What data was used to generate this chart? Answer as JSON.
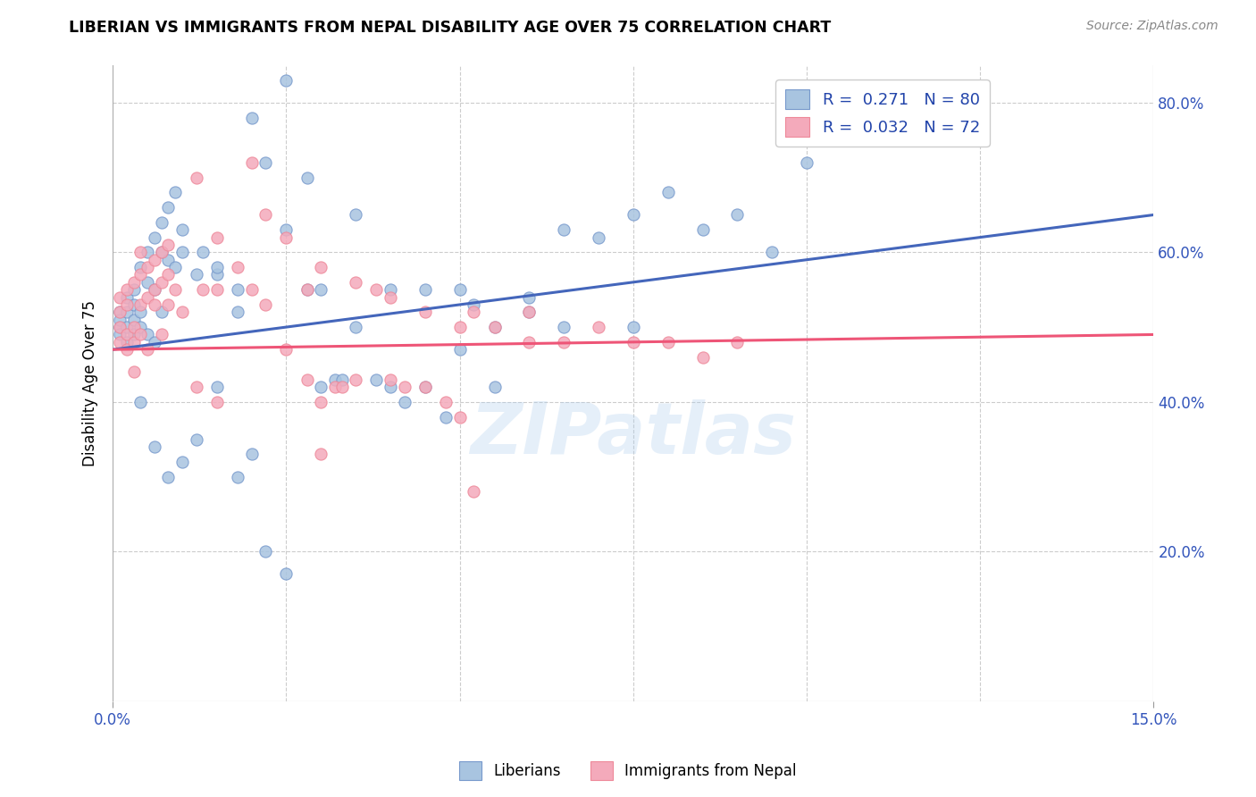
{
  "title": "LIBERIAN VS IMMIGRANTS FROM NEPAL DISABILITY AGE OVER 75 CORRELATION CHART",
  "source": "Source: ZipAtlas.com",
  "ylabel_left": "Disability Age Over 75",
  "watermark": "ZIPatlas",
  "legend": {
    "blue_R": "0.271",
    "blue_N": "80",
    "pink_R": "0.032",
    "pink_N": "72"
  },
  "blue_color": "#A8C4E0",
  "pink_color": "#F4AABB",
  "blue_edge_color": "#7799CC",
  "pink_edge_color": "#EE8899",
  "blue_line_color": "#4466BB",
  "pink_line_color": "#EE5577",
  "xlim": [
    0.0,
    0.15
  ],
  "ylim": [
    0.0,
    0.85
  ],
  "blue_line": [
    [
      0.0,
      0.47
    ],
    [
      0.15,
      0.65
    ]
  ],
  "pink_line": [
    [
      0.0,
      0.47
    ],
    [
      0.15,
      0.49
    ]
  ],
  "blue_scatter": [
    [
      0.001,
      0.5
    ],
    [
      0.001,
      0.52
    ],
    [
      0.001,
      0.51
    ],
    [
      0.001,
      0.49
    ],
    [
      0.002,
      0.54
    ],
    [
      0.002,
      0.5
    ],
    [
      0.002,
      0.52
    ],
    [
      0.002,
      0.48
    ],
    [
      0.003,
      0.55
    ],
    [
      0.003,
      0.51
    ],
    [
      0.003,
      0.49
    ],
    [
      0.003,
      0.53
    ],
    [
      0.004,
      0.58
    ],
    [
      0.004,
      0.52
    ],
    [
      0.004,
      0.5
    ],
    [
      0.005,
      0.6
    ],
    [
      0.005,
      0.56
    ],
    [
      0.005,
      0.49
    ],
    [
      0.006,
      0.62
    ],
    [
      0.006,
      0.55
    ],
    [
      0.006,
      0.48
    ],
    [
      0.007,
      0.64
    ],
    [
      0.007,
      0.6
    ],
    [
      0.007,
      0.52
    ],
    [
      0.008,
      0.66
    ],
    [
      0.008,
      0.59
    ],
    [
      0.009,
      0.68
    ],
    [
      0.009,
      0.58
    ],
    [
      0.01,
      0.63
    ],
    [
      0.01,
      0.6
    ],
    [
      0.012,
      0.57
    ],
    [
      0.013,
      0.6
    ],
    [
      0.015,
      0.57
    ],
    [
      0.015,
      0.42
    ],
    [
      0.018,
      0.55
    ],
    [
      0.018,
      0.52
    ],
    [
      0.02,
      0.78
    ],
    [
      0.022,
      0.72
    ],
    [
      0.025,
      0.83
    ],
    [
      0.025,
      0.63
    ],
    [
      0.028,
      0.7
    ],
    [
      0.028,
      0.55
    ],
    [
      0.03,
      0.55
    ],
    [
      0.03,
      0.42
    ],
    [
      0.032,
      0.43
    ],
    [
      0.033,
      0.43
    ],
    [
      0.035,
      0.65
    ],
    [
      0.038,
      0.43
    ],
    [
      0.04,
      0.55
    ],
    [
      0.04,
      0.42
    ],
    [
      0.042,
      0.4
    ],
    [
      0.045,
      0.42
    ],
    [
      0.048,
      0.38
    ],
    [
      0.05,
      0.55
    ],
    [
      0.05,
      0.47
    ],
    [
      0.052,
      0.53
    ],
    [
      0.055,
      0.5
    ],
    [
      0.06,
      0.52
    ],
    [
      0.065,
      0.5
    ],
    [
      0.07,
      0.62
    ],
    [
      0.075,
      0.5
    ],
    [
      0.08,
      0.68
    ],
    [
      0.085,
      0.63
    ],
    [
      0.1,
      0.72
    ],
    [
      0.018,
      0.3
    ],
    [
      0.02,
      0.33
    ],
    [
      0.022,
      0.2
    ],
    [
      0.025,
      0.17
    ],
    [
      0.015,
      0.58
    ],
    [
      0.012,
      0.35
    ],
    [
      0.008,
      0.3
    ],
    [
      0.01,
      0.32
    ],
    [
      0.006,
      0.34
    ],
    [
      0.004,
      0.4
    ],
    [
      0.035,
      0.5
    ],
    [
      0.045,
      0.55
    ],
    [
      0.055,
      0.42
    ],
    [
      0.06,
      0.54
    ],
    [
      0.065,
      0.63
    ],
    [
      0.075,
      0.65
    ],
    [
      0.09,
      0.65
    ],
    [
      0.095,
      0.6
    ]
  ],
  "pink_scatter": [
    [
      0.001,
      0.5
    ],
    [
      0.001,
      0.52
    ],
    [
      0.001,
      0.48
    ],
    [
      0.001,
      0.54
    ],
    [
      0.002,
      0.55
    ],
    [
      0.002,
      0.49
    ],
    [
      0.002,
      0.47
    ],
    [
      0.002,
      0.53
    ],
    [
      0.003,
      0.56
    ],
    [
      0.003,
      0.5
    ],
    [
      0.003,
      0.48
    ],
    [
      0.003,
      0.44
    ],
    [
      0.004,
      0.57
    ],
    [
      0.004,
      0.53
    ],
    [
      0.004,
      0.49
    ],
    [
      0.004,
      0.6
    ],
    [
      0.005,
      0.58
    ],
    [
      0.005,
      0.54
    ],
    [
      0.005,
      0.47
    ],
    [
      0.006,
      0.59
    ],
    [
      0.006,
      0.55
    ],
    [
      0.006,
      0.53
    ],
    [
      0.007,
      0.6
    ],
    [
      0.007,
      0.56
    ],
    [
      0.007,
      0.49
    ],
    [
      0.008,
      0.61
    ],
    [
      0.008,
      0.57
    ],
    [
      0.008,
      0.53
    ],
    [
      0.009,
      0.55
    ],
    [
      0.01,
      0.52
    ],
    [
      0.012,
      0.7
    ],
    [
      0.013,
      0.55
    ],
    [
      0.015,
      0.62
    ],
    [
      0.015,
      0.55
    ],
    [
      0.018,
      0.58
    ],
    [
      0.02,
      0.72
    ],
    [
      0.02,
      0.55
    ],
    [
      0.022,
      0.65
    ],
    [
      0.022,
      0.53
    ],
    [
      0.025,
      0.62
    ],
    [
      0.025,
      0.47
    ],
    [
      0.028,
      0.43
    ],
    [
      0.028,
      0.55
    ],
    [
      0.03,
      0.58
    ],
    [
      0.03,
      0.4
    ],
    [
      0.032,
      0.42
    ],
    [
      0.033,
      0.42
    ],
    [
      0.035,
      0.56
    ],
    [
      0.035,
      0.43
    ],
    [
      0.038,
      0.55
    ],
    [
      0.04,
      0.54
    ],
    [
      0.04,
      0.43
    ],
    [
      0.042,
      0.42
    ],
    [
      0.045,
      0.52
    ],
    [
      0.045,
      0.42
    ],
    [
      0.048,
      0.4
    ],
    [
      0.05,
      0.5
    ],
    [
      0.05,
      0.38
    ],
    [
      0.052,
      0.52
    ],
    [
      0.055,
      0.5
    ],
    [
      0.06,
      0.48
    ],
    [
      0.06,
      0.52
    ],
    [
      0.065,
      0.48
    ],
    [
      0.07,
      0.5
    ],
    [
      0.075,
      0.48
    ],
    [
      0.08,
      0.48
    ],
    [
      0.085,
      0.46
    ],
    [
      0.09,
      0.48
    ],
    [
      0.052,
      0.28
    ],
    [
      0.03,
      0.33
    ],
    [
      0.015,
      0.4
    ],
    [
      0.012,
      0.42
    ]
  ]
}
